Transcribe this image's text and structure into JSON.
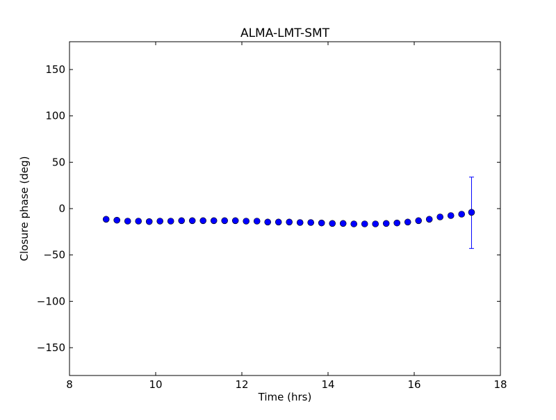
{
  "chart_data": {
    "type": "scatter",
    "title": "ALMA-LMT-SMT",
    "xlabel": "Time (hrs)",
    "ylabel": "Closure phase (deg)",
    "xlim": [
      8,
      18
    ],
    "ylim": [
      -180,
      180
    ],
    "xticks": [
      8,
      10,
      12,
      14,
      16,
      18
    ],
    "xtick_labels": [
      "8",
      "10",
      "12",
      "14",
      "16",
      "18"
    ],
    "yticks": [
      -150,
      -100,
      -50,
      0,
      50,
      100,
      150
    ],
    "ytick_labels": [
      "−150",
      "−100",
      "−50",
      "0",
      "50",
      "100",
      "150"
    ],
    "grid": false,
    "legend": "none",
    "marker_color": "#0000ff",
    "series": [
      {
        "x": [
          8.85,
          9.1,
          9.35,
          9.6,
          9.85,
          10.1,
          10.35,
          10.6,
          10.85,
          11.1,
          11.35,
          11.6,
          11.85,
          12.1,
          12.35,
          12.6,
          12.85,
          13.1,
          13.35,
          13.6,
          13.85,
          14.1,
          14.35,
          14.6,
          14.85,
          15.1,
          15.35,
          15.6,
          15.85,
          16.1,
          16.35,
          16.6,
          16.85,
          17.1,
          17.33
        ],
        "y": [
          -11.5,
          -12.5,
          -13.5,
          -13.5,
          -14,
          -13.5,
          -13.5,
          -13,
          -13,
          -13,
          -13,
          -13,
          -13,
          -13.5,
          -13.5,
          -14.5,
          -14.5,
          -14.5,
          -15,
          -15,
          -15.5,
          -16,
          -16,
          -16.5,
          -16.5,
          -16.5,
          -16,
          -15.5,
          -14.5,
          -13,
          -11.5,
          -9,
          -7.5,
          -6,
          -4
        ],
        "yerr_upper": [
          0,
          0,
          0,
          0,
          0,
          0,
          0,
          0,
          0,
          0,
          0,
          0,
          0,
          0,
          0,
          0,
          0,
          0,
          0,
          0,
          0,
          0,
          0,
          0,
          0,
          0,
          0,
          0,
          0,
          0,
          0,
          0,
          0,
          0,
          38
        ],
        "yerr_lower": [
          0,
          0,
          0,
          0,
          0,
          0,
          0,
          0,
          0,
          0,
          0,
          0,
          0,
          0,
          0,
          0,
          0,
          0,
          0,
          0,
          0,
          0,
          0,
          0,
          0,
          0,
          0,
          0,
          0,
          0,
          0,
          0,
          0,
          0,
          39
        ]
      }
    ]
  }
}
